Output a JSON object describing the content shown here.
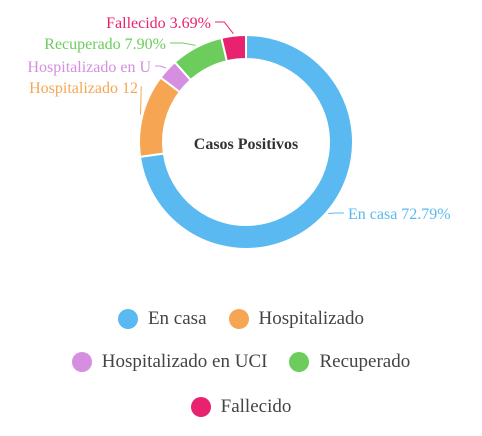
{
  "chart_data": {
    "type": "pie",
    "variant": "donut",
    "center_label": "Casos Positivos",
    "categories": [
      "En casa",
      "Hospitalizado",
      "Hospitalizado en UCI",
      "Recuperado",
      "Fallecido"
    ],
    "values": [
      72.79,
      12.5,
      3.12,
      7.9,
      3.69
    ],
    "slice_labels": [
      "En casa 72.79%",
      "Hospitalizado 12",
      "Hospitalizado en U",
      "Recuperado 7.90%",
      "Fallecido 3.69%"
    ],
    "colors": [
      "#5ab9f0",
      "#f6a652",
      "#d58ee0",
      "#6ccd5c",
      "#e8226f"
    ],
    "legend_placement": "bottom"
  },
  "legend": [
    {
      "label": "En casa",
      "color": "#5ab9f0"
    },
    {
      "label": "Hospitalizado",
      "color": "#f6a652"
    },
    {
      "label": "Hospitalizado en UCI",
      "color": "#d58ee0"
    },
    {
      "label": "Recuperado",
      "color": "#6ccd5c"
    },
    {
      "label": "Fallecido",
      "color": "#e8226f"
    }
  ]
}
